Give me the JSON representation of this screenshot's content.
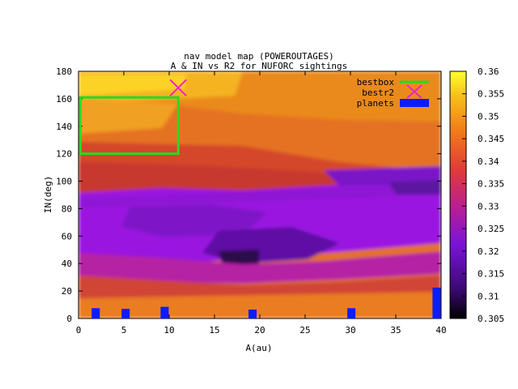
{
  "chart_data": {
    "type": "heatmap",
    "title": "nav model map (POWEROUTAGES)",
    "subtitle": "A & IN vs R2 for NUFORC sightings",
    "xlabel": "A(au)",
    "ylabel": "IN(deg)",
    "xlim": [
      0,
      40
    ],
    "ylim": [
      0,
      180
    ],
    "x_ticks": [
      "0",
      "5",
      "10",
      "15",
      "20",
      "25",
      "30",
      "35",
      "40"
    ],
    "y_ticks": [
      "0",
      "20",
      "40",
      "60",
      "80",
      "100",
      "120",
      "140",
      "160",
      "180"
    ],
    "colorbar": {
      "range": [
        0.305,
        0.36
      ],
      "ticks": [
        "0.305",
        "0.31",
        "0.315",
        "0.32",
        "0.325",
        "0.33",
        "0.335",
        "0.34",
        "0.345",
        "0.35",
        "0.355",
        "0.36"
      ],
      "palette": [
        "#000000",
        "#3b0a72",
        "#7a14d8",
        "#b81f92",
        "#e03a3a",
        "#f0781a",
        "#f7c01a",
        "#ffff30"
      ]
    },
    "legend": {
      "placement": "top-right",
      "entries": [
        {
          "label": "bestbox",
          "color": "#22dd22",
          "style": "line"
        },
        {
          "label": "bestr2",
          "color": "#ee22cc",
          "style": "cross"
        },
        {
          "label": "planets",
          "color": "#0b1cff",
          "style": "box"
        }
      ]
    },
    "bestbox": {
      "x0": 0.2,
      "x1": 11,
      "y0": 120,
      "y1": 161
    },
    "bestr2": {
      "x": 11,
      "y": 168
    },
    "planets": [
      {
        "a": 1.9,
        "in": 7.5
      },
      {
        "a": 5.2,
        "in": 7
      },
      {
        "a": 9.5,
        "in": 8.5
      },
      {
        "a": 19.2,
        "in": 6.5
      },
      {
        "a": 30.1,
        "in": 7.5
      },
      {
        "a": 39.5,
        "in": 22.5
      }
    ],
    "field_notes": "R2 values between 0.305 and 0.36"
  }
}
